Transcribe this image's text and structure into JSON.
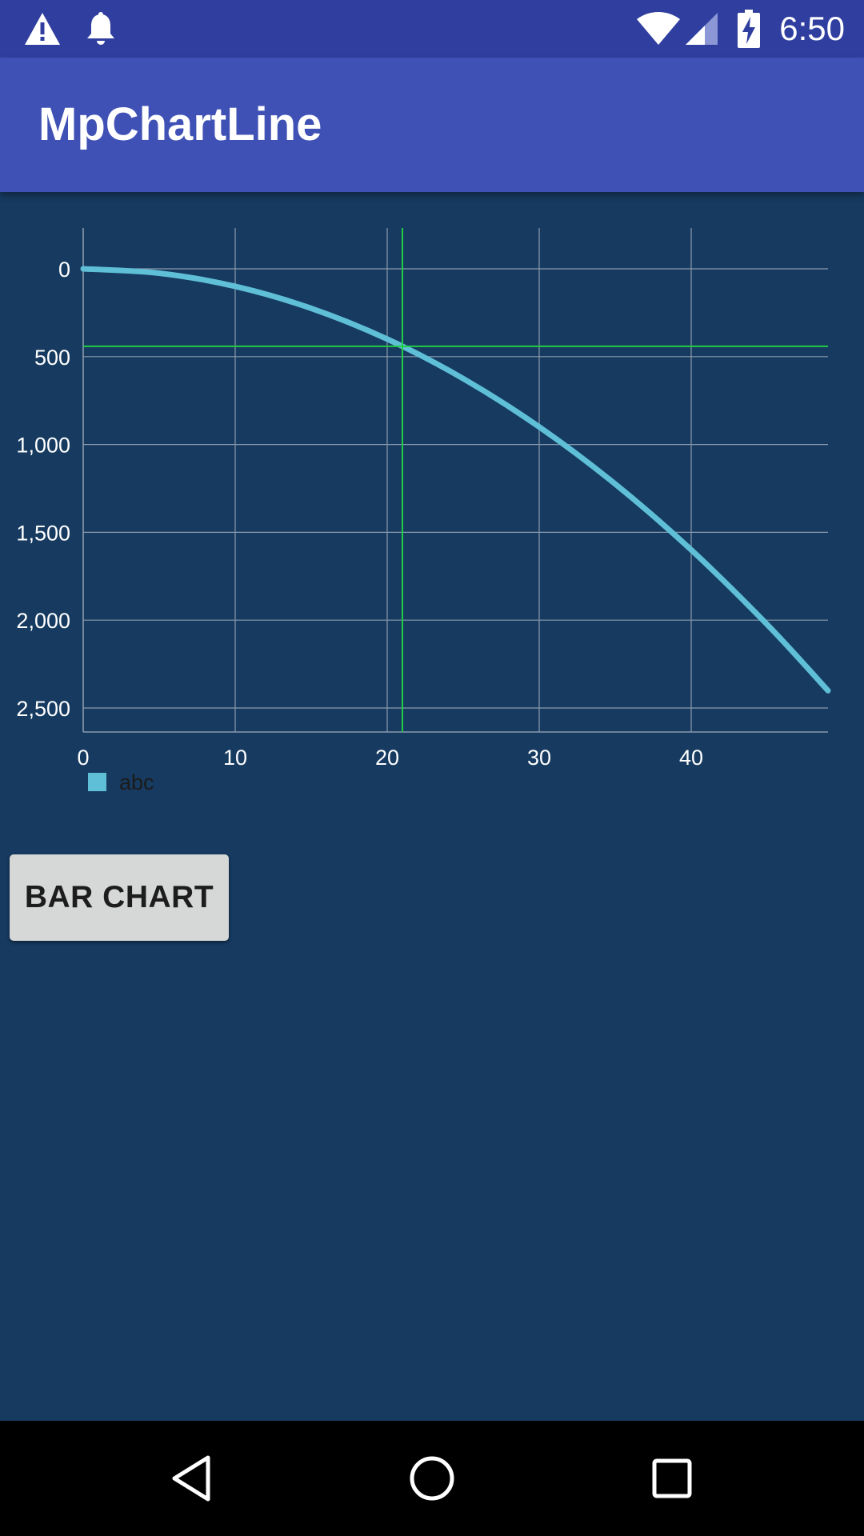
{
  "status_bar": {
    "time": "6:50",
    "icons": [
      "warning-icon",
      "notification-bell-icon",
      "wifi-icon",
      "cellular-signal-icon",
      "battery-charging-icon"
    ]
  },
  "app_bar": {
    "title": "MpChartLine"
  },
  "chart_data": {
    "type": "line",
    "title": "",
    "xlabel": "",
    "ylabel": "",
    "xlim": [
      0,
      49
    ],
    "ylim": [
      2500,
      0
    ],
    "y_inverted": true,
    "x_ticks": [
      "0",
      "10",
      "20",
      "30",
      "40"
    ],
    "y_ticks": [
      "0",
      "500",
      "1,000",
      "1,500",
      "2,000",
      "2,500"
    ],
    "grid": true,
    "legend_position": "bottom-left",
    "series": [
      {
        "name": "abc",
        "color": "#5fbfd6",
        "x": [
          0,
          5,
          10,
          15,
          20,
          25,
          30,
          35,
          40,
          45,
          49
        ],
        "y": [
          0,
          25,
          100,
          225,
          400,
          625,
          900,
          1225,
          1600,
          2025,
          2401
        ]
      }
    ],
    "highlight": {
      "x": 21,
      "y": 441,
      "color": "#22cc44"
    }
  },
  "actions": {
    "bar_chart_button": "BAR CHART"
  },
  "nav_bar": {
    "icons": [
      "back-icon",
      "home-icon",
      "recents-icon"
    ]
  },
  "colors": {
    "status_bar": "#303f9f",
    "app_bar": "#3f51b5",
    "background": "#163a60",
    "grid": "#8a9aad",
    "line": "#5fbfd6",
    "highlight": "#22cc44"
  }
}
